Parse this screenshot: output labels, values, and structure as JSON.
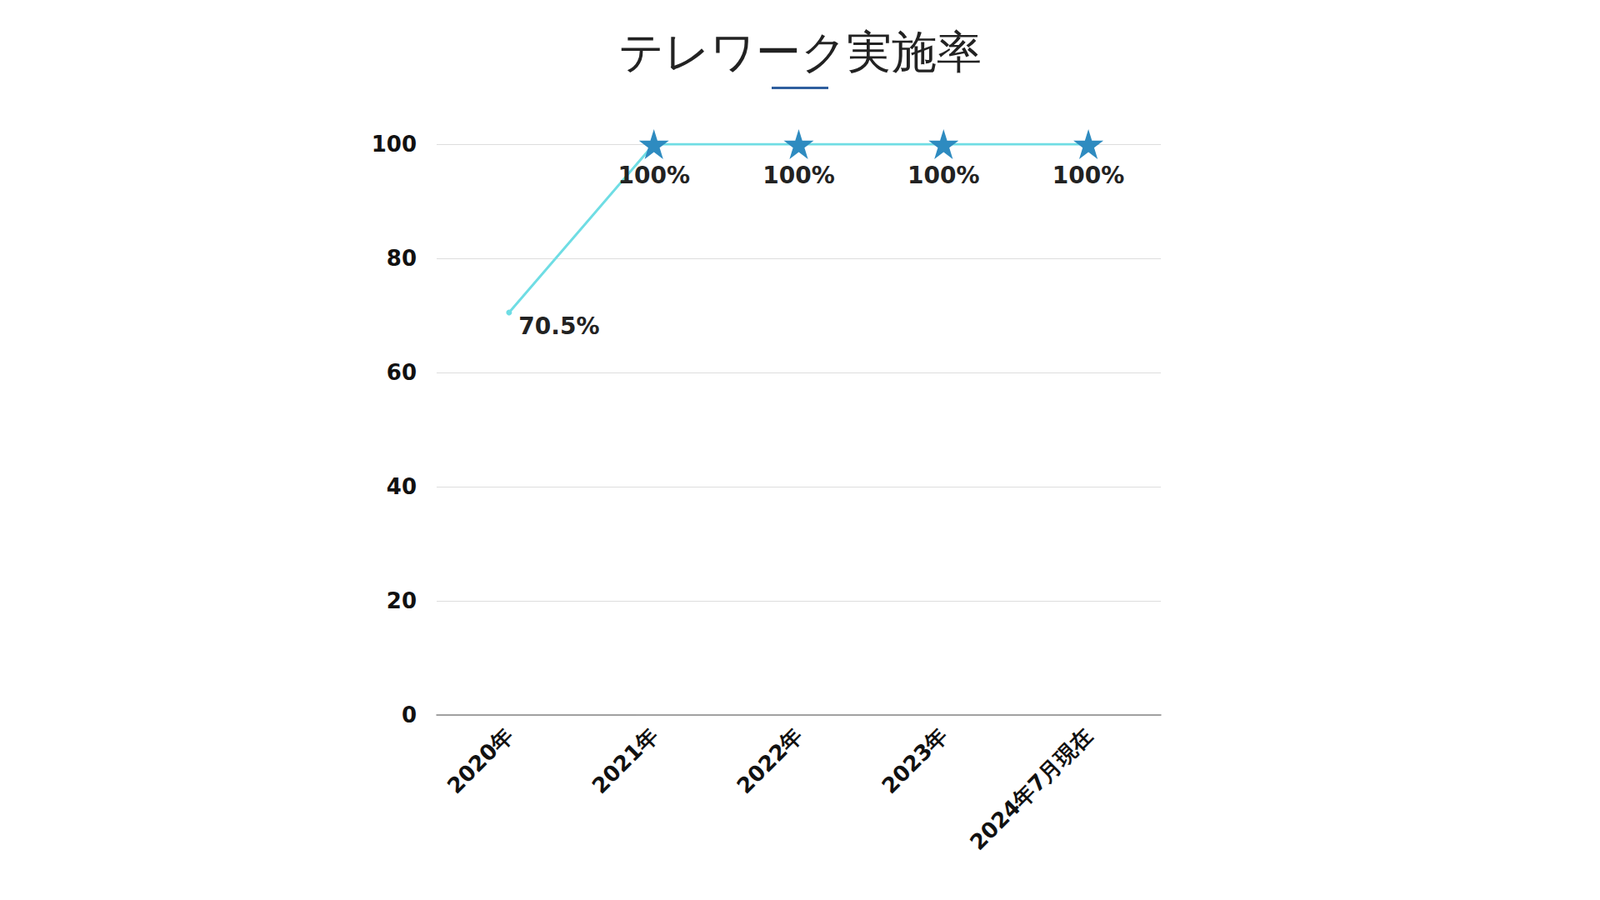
{
  "chart_data": {
    "type": "line",
    "title": "テレワーク実施率",
    "categories": [
      "2020年",
      "2021年",
      "2022年",
      "2023年",
      "2024年7月現在"
    ],
    "values": [
      70.5,
      100,
      100,
      100,
      100
    ],
    "value_labels": [
      "70.5%",
      "100%",
      "100%",
      "100%",
      "100%"
    ],
    "data_labels": true,
    "color": "#6fdde4",
    "marker": "star",
    "ylim": [
      0,
      100
    ],
    "yticks": [
      0,
      20,
      40,
      60,
      80,
      100
    ],
    "grid": true
  }
}
